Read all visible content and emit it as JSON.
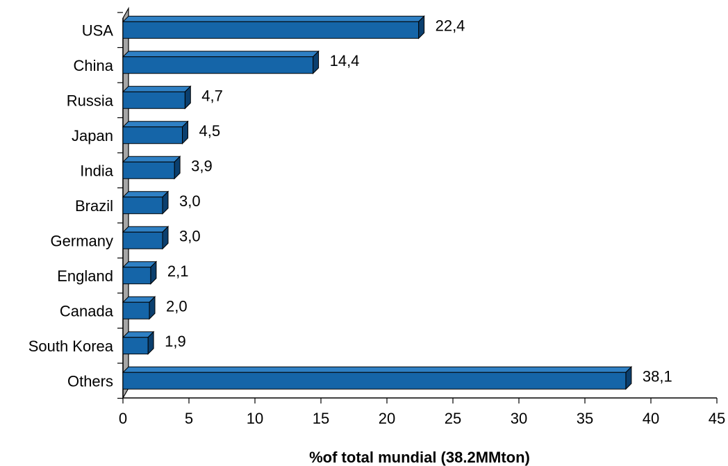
{
  "chart_data": {
    "type": "bar",
    "orientation": "horizontal",
    "categories": [
      "USA",
      "China",
      "Russia",
      "Japan",
      "India",
      "Brazil",
      "Germany",
      "England",
      "Canada",
      "South Korea",
      "Others"
    ],
    "values": [
      22.4,
      14.4,
      4.7,
      4.5,
      3.9,
      3.0,
      3.0,
      2.1,
      2.0,
      1.9,
      38.1
    ],
    "value_labels": [
      "22,4",
      "14,4",
      "4,7",
      "4,5",
      "3,9",
      "3,0",
      "3,0",
      "2,1",
      "2,0",
      "1,9",
      "38,1"
    ],
    "xlabel": "%of total mundial (38.2MMton)",
    "ylabel": "",
    "xlim": [
      0,
      45
    ],
    "xticks": [
      0,
      5,
      10,
      15,
      20,
      25,
      30,
      35,
      40,
      45
    ],
    "grid": false,
    "legend": "none",
    "colors": {
      "bar_front": "#1565a8",
      "bar_side": "#0b3f6e",
      "bar_top": "#2f80c4",
      "bar_outline": "#000000",
      "wall": "#a6a6a6",
      "axis": "#000000"
    }
  }
}
